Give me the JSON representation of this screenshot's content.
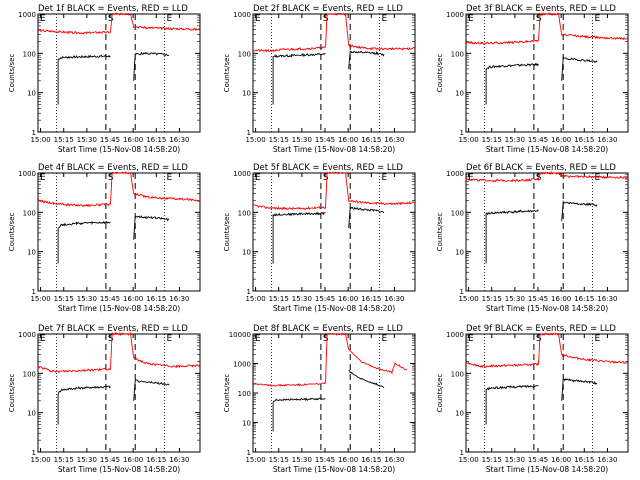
{
  "grid": {
    "xlabel_prefix": "Start Time",
    "start_time": "(15-Nov-08 14:58:20)",
    "ylabel": "Counts/sec",
    "x_ticks": [
      "15:00",
      "15:15",
      "15:30",
      "15:45",
      "16:00",
      "16:15",
      "16:30"
    ],
    "y_ticks": [
      "1",
      "10",
      "100",
      "1000"
    ],
    "y_ticks_big": [
      "1",
      "10",
      "100",
      "1000",
      "10000"
    ],
    "colors": {
      "events": "#000000",
      "lld": "#ff0000"
    },
    "markers": {
      "start": "S",
      "end": "E"
    }
  },
  "chart_data": [
    {
      "type": "line",
      "title": "Det 1f BLACK = Events, RED = LLD",
      "x_range_min": [
        0,
        105
      ],
      "y_log": true,
      "ylim": [
        1,
        1000
      ],
      "events": [
        [
          13,
          70
        ],
        [
          15,
          78
        ],
        [
          20,
          80
        ],
        [
          30,
          82
        ],
        [
          40,
          84
        ],
        [
          47,
          85
        ]
      ],
      "lld": [
        [
          0,
          380
        ],
        [
          10,
          360
        ],
        [
          20,
          340
        ],
        [
          30,
          330
        ],
        [
          40,
          340
        ],
        [
          47,
          340
        ],
        [
          48,
          1000
        ],
        [
          60,
          1000
        ],
        [
          62,
          480
        ],
        [
          70,
          450
        ],
        [
          80,
          430
        ],
        [
          90,
          420
        ],
        [
          100,
          410
        ],
        [
          105,
          400
        ]
      ],
      "events2": [
        [
          62,
          20
        ],
        [
          63,
          95
        ],
        [
          70,
          100
        ],
        [
          80,
          95
        ],
        [
          85,
          90
        ]
      ],
      "dashed_x": [
        44,
        63
      ],
      "dotted_x": [
        12,
        82
      ]
    },
    {
      "type": "line",
      "title": "Det 2f BLACK = Events, RED = LLD",
      "x_range_min": [
        0,
        105
      ],
      "y_log": true,
      "ylim": [
        1,
        1000
      ],
      "events": [
        [
          13,
          80
        ],
        [
          15,
          85
        ],
        [
          25,
          88
        ],
        [
          35,
          92
        ],
        [
          47,
          95
        ]
      ],
      "lld": [
        [
          0,
          120
        ],
        [
          10,
          115
        ],
        [
          20,
          125
        ],
        [
          30,
          130
        ],
        [
          40,
          135
        ],
        [
          47,
          140
        ],
        [
          48,
          1000
        ],
        [
          60,
          1000
        ],
        [
          62,
          160
        ],
        [
          70,
          140
        ],
        [
          80,
          130
        ],
        [
          90,
          130
        ],
        [
          100,
          130
        ],
        [
          105,
          140
        ]
      ],
      "events2": [
        [
          62,
          40
        ],
        [
          63,
          110
        ],
        [
          70,
          105
        ],
        [
          80,
          100
        ],
        [
          85,
          90
        ]
      ],
      "dashed_x": [
        44,
        63
      ],
      "dotted_x": [
        12,
        82
      ]
    },
    {
      "type": "line",
      "title": "Det 3f BLACK = Events, RED = LLD",
      "x_range_min": [
        0,
        105
      ],
      "y_log": true,
      "ylim": [
        1,
        1000
      ],
      "events": [
        [
          13,
          40
        ],
        [
          15,
          45
        ],
        [
          25,
          48
        ],
        [
          35,
          50
        ],
        [
          47,
          52
        ]
      ],
      "lld": [
        [
          0,
          190
        ],
        [
          10,
          180
        ],
        [
          20,
          185
        ],
        [
          30,
          190
        ],
        [
          40,
          200
        ],
        [
          47,
          210
        ],
        [
          48,
          1000
        ],
        [
          60,
          1000
        ],
        [
          62,
          300
        ],
        [
          70,
          280
        ],
        [
          80,
          260
        ],
        [
          90,
          250
        ],
        [
          100,
          240
        ],
        [
          105,
          235
        ]
      ],
      "events2": [
        [
          62,
          20
        ],
        [
          63,
          75
        ],
        [
          70,
          70
        ],
        [
          80,
          65
        ],
        [
          85,
          60
        ]
      ],
      "dashed_x": [
        44,
        63
      ],
      "dotted_x": [
        12,
        82
      ]
    },
    {
      "type": "line",
      "title": "Det 4f BLACK = Events, RED = LLD",
      "x_range_min": [
        0,
        105
      ],
      "y_log": true,
      "ylim": [
        1,
        1000
      ],
      "events": [
        [
          13,
          40
        ],
        [
          15,
          48
        ],
        [
          25,
          52
        ],
        [
          35,
          54
        ],
        [
          47,
          55
        ]
      ],
      "lld": [
        [
          0,
          200
        ],
        [
          10,
          170
        ],
        [
          20,
          155
        ],
        [
          30,
          150
        ],
        [
          40,
          155
        ],
        [
          47,
          160
        ],
        [
          48,
          1000
        ],
        [
          60,
          1000
        ],
        [
          62,
          300
        ],
        [
          70,
          250
        ],
        [
          80,
          230
        ],
        [
          90,
          220
        ],
        [
          100,
          210
        ],
        [
          105,
          200
        ]
      ],
      "events2": [
        [
          62,
          20
        ],
        [
          63,
          80
        ],
        [
          70,
          75
        ],
        [
          80,
          70
        ],
        [
          85,
          65
        ]
      ],
      "dashed_x": [
        44,
        63
      ],
      "dotted_x": [
        12,
        82
      ]
    },
    {
      "type": "line",
      "title": "Det 5f BLACK = Events, RED = LLD",
      "x_range_min": [
        0,
        105
      ],
      "y_log": true,
      "ylim": [
        1,
        1000
      ],
      "events": [
        [
          13,
          85
        ],
        [
          15,
          88
        ],
        [
          25,
          90
        ],
        [
          35,
          92
        ],
        [
          47,
          95
        ]
      ],
      "lld": [
        [
          0,
          150
        ],
        [
          10,
          130
        ],
        [
          20,
          125
        ],
        [
          30,
          125
        ],
        [
          40,
          130
        ],
        [
          47,
          135
        ],
        [
          48,
          1000
        ],
        [
          60,
          1000
        ],
        [
          62,
          200
        ],
        [
          70,
          180
        ],
        [
          80,
          170
        ],
        [
          90,
          165
        ],
        [
          100,
          170
        ],
        [
          105,
          180
        ]
      ],
      "events2": [
        [
          62,
          40
        ],
        [
          63,
          130
        ],
        [
          70,
          120
        ],
        [
          80,
          110
        ],
        [
          85,
          100
        ]
      ],
      "dashed_x": [
        44,
        63
      ],
      "dotted_x": [
        12,
        82
      ]
    },
    {
      "type": "line",
      "title": "Det 6f BLACK = Events, RED = LLD",
      "x_range_min": [
        0,
        105
      ],
      "y_log": true,
      "ylim": [
        1,
        1000
      ],
      "events": [
        [
          13,
          90
        ],
        [
          15,
          95
        ],
        [
          25,
          100
        ],
        [
          35,
          105
        ],
        [
          47,
          110
        ]
      ],
      "lld": [
        [
          0,
          700
        ],
        [
          10,
          650
        ],
        [
          20,
          640
        ],
        [
          30,
          650
        ],
        [
          40,
          660
        ],
        [
          47,
          700
        ],
        [
          48,
          1000
        ],
        [
          60,
          1000
        ],
        [
          62,
          850
        ],
        [
          70,
          820
        ],
        [
          80,
          800
        ],
        [
          90,
          790
        ],
        [
          100,
          780
        ],
        [
          105,
          760
        ]
      ],
      "events2": [
        [
          62,
          60
        ],
        [
          63,
          180
        ],
        [
          70,
          170
        ],
        [
          80,
          160
        ],
        [
          85,
          150
        ]
      ],
      "dashed_x": [
        44,
        63
      ],
      "dotted_x": [
        12,
        82
      ]
    },
    {
      "type": "line",
      "title": "Det 7f BLACK = Events, RED = LLD",
      "x_range_min": [
        0,
        105
      ],
      "y_log": true,
      "ylim": [
        1,
        1000
      ],
      "events": [
        [
          13,
          30
        ],
        [
          15,
          38
        ],
        [
          25,
          42
        ],
        [
          35,
          44
        ],
        [
          47,
          46
        ]
      ],
      "lld": [
        [
          0,
          150
        ],
        [
          10,
          110
        ],
        [
          20,
          115
        ],
        [
          30,
          120
        ],
        [
          40,
          125
        ],
        [
          47,
          130
        ],
        [
          48,
          1000
        ],
        [
          60,
          1000
        ],
        [
          62,
          250
        ],
        [
          70,
          180
        ],
        [
          80,
          160
        ],
        [
          90,
          150
        ],
        [
          100,
          155
        ],
        [
          105,
          165
        ]
      ],
      "events2": [
        [
          62,
          20
        ],
        [
          63,
          65
        ],
        [
          70,
          60
        ],
        [
          80,
          55
        ],
        [
          85,
          50
        ]
      ],
      "dashed_x": [
        44,
        63
      ],
      "dotted_x": [
        12,
        82
      ]
    },
    {
      "type": "line",
      "title": "Det 8f BLACK = Events, RED = LLD",
      "x_range_min": [
        0,
        105
      ],
      "y_log": true,
      "ylim": [
        1,
        10000
      ],
      "events": [
        [
          13,
          50
        ],
        [
          15,
          58
        ],
        [
          25,
          60
        ],
        [
          35,
          62
        ],
        [
          47,
          65
        ]
      ],
      "lld": [
        [
          0,
          220
        ],
        [
          10,
          180
        ],
        [
          20,
          185
        ],
        [
          30,
          190
        ],
        [
          40,
          200
        ],
        [
          47,
          210
        ],
        [
          48,
          10000
        ],
        [
          60,
          10000
        ],
        [
          62,
          3000
        ],
        [
          70,
          1200
        ],
        [
          80,
          700
        ],
        [
          90,
          500
        ],
        [
          92,
          1000
        ],
        [
          95,
          800
        ],
        [
          100,
          600
        ]
      ],
      "events2": [
        [
          62,
          600
        ],
        [
          63,
          500
        ],
        [
          70,
          300
        ],
        [
          80,
          200
        ],
        [
          85,
          150
        ]
      ],
      "dashed_x": [
        44,
        63
      ],
      "dotted_x": [
        12,
        82
      ]
    },
    {
      "type": "line",
      "title": "Det 9f BLACK = Events, RED = LLD",
      "x_range_min": [
        0,
        105
      ],
      "y_log": true,
      "ylim": [
        1,
        1000
      ],
      "events": [
        [
          13,
          38
        ],
        [
          15,
          42
        ],
        [
          25,
          44
        ],
        [
          35,
          46
        ],
        [
          47,
          48
        ]
      ],
      "lld": [
        [
          0,
          190
        ],
        [
          10,
          150
        ],
        [
          20,
          155
        ],
        [
          30,
          160
        ],
        [
          40,
          165
        ],
        [
          47,
          170
        ],
        [
          48,
          1000
        ],
        [
          60,
          1000
        ],
        [
          62,
          300
        ],
        [
          70,
          250
        ],
        [
          80,
          220
        ],
        [
          90,
          200
        ],
        [
          100,
          190
        ],
        [
          105,
          185
        ]
      ],
      "events2": [
        [
          62,
          20
        ],
        [
          63,
          70
        ],
        [
          70,
          65
        ],
        [
          80,
          60
        ],
        [
          85,
          55
        ]
      ],
      "dashed_x": [
        44,
        63
      ],
      "dotted_x": [
        12,
        82
      ]
    }
  ]
}
